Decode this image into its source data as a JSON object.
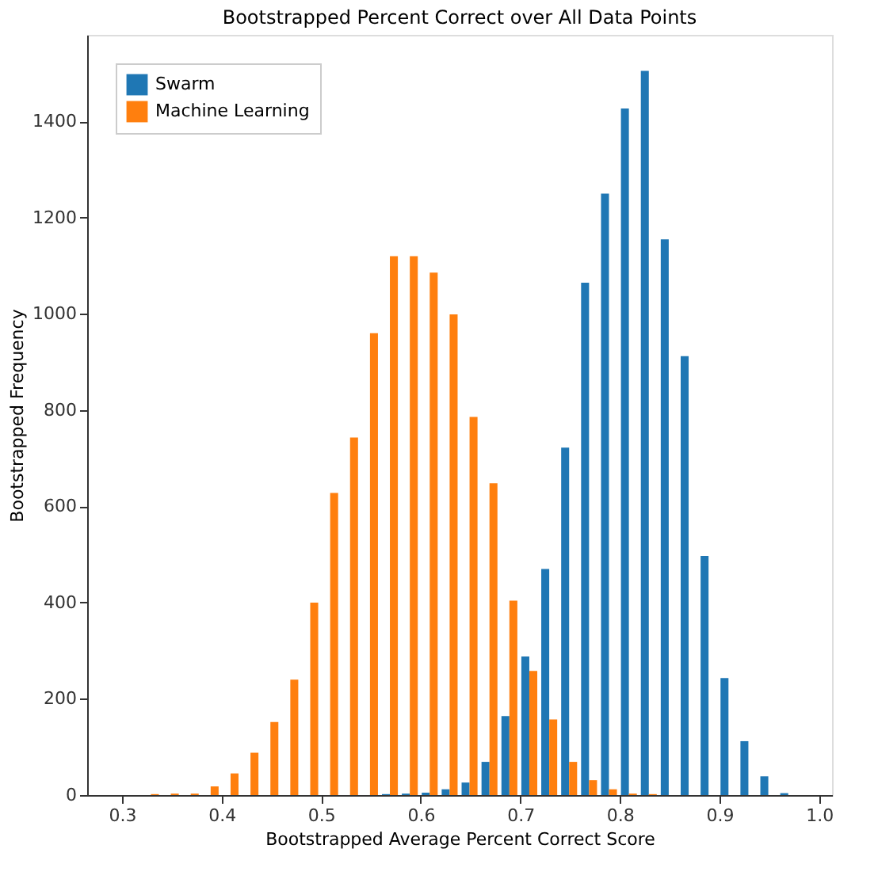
{
  "chart_data": {
    "type": "histogram",
    "title": "Bootstrapped Percent Correct over All Data Points",
    "xlabel": "Bootstrapped Average Percent Correct Score",
    "ylabel": "Bootstrapped Frequency",
    "bins": [
      0.299,
      0.319,
      0.339,
      0.359,
      0.379,
      0.399,
      0.419,
      0.439,
      0.459,
      0.479,
      0.499,
      0.519,
      0.539,
      0.559,
      0.579,
      0.599,
      0.619,
      0.639,
      0.659,
      0.679,
      0.699,
      0.719,
      0.739,
      0.759,
      0.779,
      0.799,
      0.819,
      0.839,
      0.859,
      0.879,
      0.899,
      0.919,
      0.939,
      0.959,
      0.979
    ],
    "series": [
      {
        "name": "Swarm",
        "color": "#1f77b4",
        "values": [
          0,
          0,
          0,
          0,
          0,
          0,
          0,
          0,
          0,
          0,
          0,
          0,
          0,
          2,
          3,
          5,
          12,
          26,
          69,
          164,
          288,
          470,
          722,
          1065,
          1250,
          1427,
          1505,
          1155,
          912,
          497,
          243,
          112,
          39,
          4
        ]
      },
      {
        "name": "Machine Learning",
        "color": "#ff7f0e",
        "values": [
          0,
          2,
          3,
          3,
          18,
          45,
          88,
          152,
          240,
          400,
          628,
          743,
          960,
          1120,
          1120,
          1086,
          999,
          786,
          648,
          404,
          258,
          157,
          69,
          31,
          12,
          3,
          2,
          0,
          0,
          0,
          0,
          0,
          0,
          0
        ]
      }
    ],
    "xlim": [
      0.265,
      1.013
    ],
    "xticks": [
      0.3,
      0.4,
      0.5,
      0.6,
      0.7,
      0.8,
      0.9,
      {
        "value": 1.0,
        "label": "1.0"
      }
    ],
    "ylim": [
      0,
      1580
    ],
    "yticks": [
      0,
      200,
      400,
      600,
      800,
      1000,
      1200,
      1400
    ],
    "grid": false,
    "legend": "top left"
  }
}
